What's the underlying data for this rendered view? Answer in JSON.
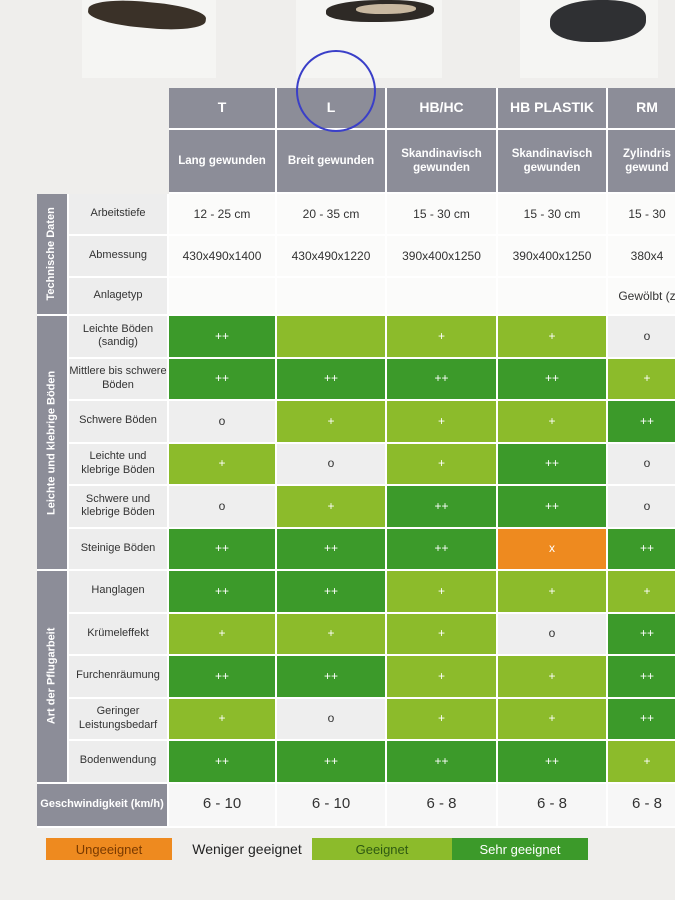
{
  "columns": [
    {
      "name": "T",
      "sub": "Lang gewunden"
    },
    {
      "name": "L",
      "sub": "Breit gewunden"
    },
    {
      "name": "HB/HC",
      "sub": "Skandinavisch gewunden"
    },
    {
      "name": "HB PLASTIK",
      "sub": "Skandinavisch gewunden"
    },
    {
      "name": "RM",
      "sub": "Zylindris gewund"
    }
  ],
  "sections": {
    "tech": "Technische Daten",
    "soil": "Leichte und klebrige Böden",
    "work": "Art der Pflugarbeit"
  },
  "tech_rows": [
    {
      "label": "Arbeitstiefe",
      "values": [
        "12 - 25 cm",
        "20 - 35 cm",
        "15 - 30 cm",
        "15 - 30 cm",
        "15 - 30"
      ]
    },
    {
      "label": "Abmessung",
      "values": [
        "430x490x1400",
        "430x490x1220",
        "390x400x1250",
        "390x400x1250",
        "380x4"
      ]
    },
    {
      "label": "Anlagetyp",
      "values": [
        "",
        "",
        "",
        "",
        "Gewölbt (z"
      ]
    }
  ],
  "rating_rows": [
    {
      "label": "Leichte Böden (sandig)",
      "values": [
        "++",
        "",
        "+",
        "+",
        "o"
      ],
      "colors": [
        "g1",
        "g2",
        "g2",
        "g2",
        "g0"
      ]
    },
    {
      "label": "Mittlere bis schwere Böden",
      "values": [
        "++",
        "++",
        "++",
        "++",
        "+"
      ],
      "colors": [
        "g1",
        "g1",
        "g1",
        "g1",
        "g2"
      ]
    },
    {
      "label": "Schwere Böden",
      "values": [
        "o",
        "+",
        "+",
        "+",
        "++"
      ],
      "colors": [
        "g0",
        "g2",
        "g2",
        "g2",
        "g1"
      ]
    },
    {
      "label": "Leichte und klebrige Böden",
      "values": [
        "+",
        "o",
        "+",
        "++",
        "o"
      ],
      "colors": [
        "g2",
        "g0",
        "g2",
        "g1",
        "g0"
      ]
    },
    {
      "label": "Schwere und klebrige Böden",
      "values": [
        "o",
        "+",
        "++",
        "++",
        "o"
      ],
      "colors": [
        "g0",
        "g2",
        "g1",
        "g1",
        "g0"
      ]
    },
    {
      "label": "Steinige Böden",
      "values": [
        "++",
        "++",
        "++",
        "x",
        "++"
      ],
      "colors": [
        "g1",
        "g1",
        "g1",
        "gx",
        "g1"
      ]
    },
    {
      "label": "Hanglagen",
      "values": [
        "++",
        "++",
        "+",
        "+",
        "+"
      ],
      "colors": [
        "g1",
        "g1",
        "g2",
        "g2",
        "g2"
      ]
    },
    {
      "label": "Krümeleffekt",
      "values": [
        "+",
        "+",
        "+",
        "o",
        "++"
      ],
      "colors": [
        "g2",
        "g2",
        "g2",
        "g0",
        "g1"
      ]
    },
    {
      "label": "Furchenräumung",
      "values": [
        "++",
        "++",
        "+",
        "+",
        "++"
      ],
      "colors": [
        "g1",
        "g1",
        "g2",
        "g2",
        "g1"
      ]
    },
    {
      "label": "Geringer Leistungsbedarf",
      "values": [
        "+",
        "o",
        "+",
        "+",
        "++"
      ],
      "colors": [
        "g2",
        "g0",
        "g2",
        "g2",
        "g1"
      ]
    },
    {
      "label": "Bodenwendung",
      "values": [
        "++",
        "++",
        "++",
        "++",
        "+"
      ],
      "colors": [
        "g1",
        "g1",
        "g1",
        "g1",
        "g2"
      ]
    }
  ],
  "speed": {
    "label": "Geschwindigkeit (km/h)",
    "values": [
      "6 - 10",
      "6 - 10",
      "6 - 8",
      "6 - 8",
      "6 - 8"
    ]
  },
  "legend": [
    "Ungeeignet",
    "Weniger geeignet",
    "Geeignet",
    "Sehr geeignet"
  ],
  "colors": {
    "very": "#3c9a2a",
    "suitable": "#8cbb2b",
    "less": "#eeeeee",
    "unsuitable": "#ee8a1f",
    "header": "#8c8d98"
  }
}
